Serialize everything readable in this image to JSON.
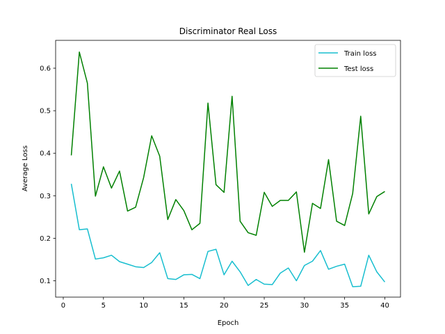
{
  "chart_data": {
    "type": "line",
    "title": "Discriminator Real Loss",
    "xlabel": "Epoch",
    "ylabel": "Average Loss",
    "xlim": [
      -0.95,
      41.95
    ],
    "ylim": [
      0.0615,
      0.6655
    ],
    "xticks": [
      0,
      5,
      10,
      15,
      20,
      25,
      30,
      35,
      40
    ],
    "yticks": [
      0.1,
      0.2,
      0.3,
      0.4,
      0.5,
      0.6
    ],
    "ytick_labels": [
      "0.1",
      "0.2",
      "0.3",
      "0.4",
      "0.5",
      "0.6"
    ],
    "grid": false,
    "legend_position": "top-right",
    "x": [
      1,
      2,
      3,
      4,
      5,
      6,
      7,
      8,
      9,
      10,
      11,
      12,
      13,
      14,
      15,
      16,
      17,
      18,
      19,
      20,
      21,
      22,
      23,
      24,
      25,
      26,
      27,
      28,
      29,
      30,
      31,
      32,
      33,
      34,
      35,
      36,
      37,
      38,
      39,
      40
    ],
    "series": [
      {
        "name": "Train loss",
        "color": "#17becf",
        "values": [
          0.328,
          0.22,
          0.222,
          0.151,
          0.154,
          0.16,
          0.145,
          0.139,
          0.133,
          0.131,
          0.143,
          0.166,
          0.105,
          0.103,
          0.114,
          0.115,
          0.105,
          0.169,
          0.174,
          0.114,
          0.146,
          0.121,
          0.089,
          0.103,
          0.092,
          0.091,
          0.118,
          0.13,
          0.1,
          0.136,
          0.146,
          0.171,
          0.127,
          0.134,
          0.139,
          0.086,
          0.087,
          0.16,
          0.121,
          0.097
        ]
      },
      {
        "name": "Test loss",
        "color": "#008000",
        "values": [
          0.395,
          0.638,
          0.565,
          0.299,
          0.368,
          0.318,
          0.358,
          0.264,
          0.273,
          0.343,
          0.441,
          0.393,
          0.244,
          0.291,
          0.265,
          0.22,
          0.235,
          0.518,
          0.326,
          0.308,
          0.534,
          0.24,
          0.213,
          0.207,
          0.308,
          0.275,
          0.289,
          0.289,
          0.309,
          0.167,
          0.282,
          0.27,
          0.385,
          0.24,
          0.23,
          0.305,
          0.487,
          0.257,
          0.298,
          0.31
        ]
      }
    ]
  }
}
